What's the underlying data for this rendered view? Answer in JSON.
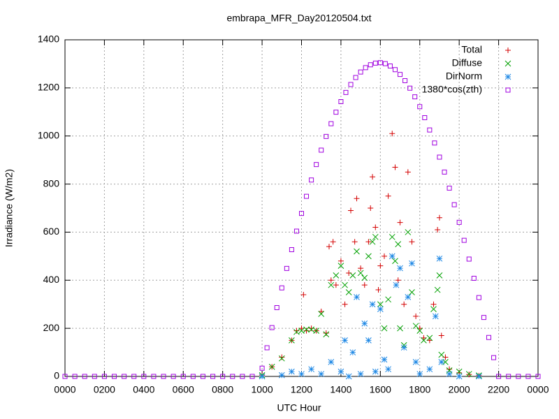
{
  "chart_data": {
    "type": "scatter",
    "title": "embrapa_MFR_Day20120504.txt",
    "xlabel": "UTC Hour",
    "ylabel": "Irradiance (W/m2)",
    "xlim": [
      0,
      24
    ],
    "xticks": [
      {
        "value": 0,
        "label": "0000"
      },
      {
        "value": 2,
        "label": "0200"
      },
      {
        "value": 4,
        "label": "0400"
      },
      {
        "value": 6,
        "label": "0600"
      },
      {
        "value": 8,
        "label": "0800"
      },
      {
        "value": 10,
        "label": "1000"
      },
      {
        "value": 12,
        "label": "1200"
      },
      {
        "value": 14,
        "label": "1400"
      },
      {
        "value": 16,
        "label": "1600"
      },
      {
        "value": 18,
        "label": "1800"
      },
      {
        "value": 20,
        "label": "2000"
      },
      {
        "value": 22,
        "label": "2200"
      },
      {
        "value": 24,
        "label": "0000"
      }
    ],
    "ylim": [
      0,
      1400
    ],
    "yticks": [
      0,
      200,
      400,
      600,
      800,
      1000,
      1200,
      1400
    ],
    "grid": true,
    "legend": "upper right",
    "series": [
      {
        "name": "Total",
        "color": "#d40000",
        "marker": "plus",
        "x": [
          10,
          10.5,
          11,
          11.5,
          11.75,
          12,
          12.1,
          12.25,
          12.5,
          12.75,
          13,
          13.25,
          13.4,
          13.5,
          13.6,
          13.75,
          14,
          14.2,
          14.4,
          14.5,
          14.7,
          14.8,
          15,
          15.2,
          15.4,
          15.5,
          15.6,
          15.75,
          15.9,
          16,
          16.2,
          16.4,
          16.6,
          16.75,
          16.9,
          17,
          17.2,
          17.4,
          17.6,
          17.8,
          18,
          18.2,
          18.5,
          18.7,
          18.9,
          19,
          19.1,
          19.3,
          19.5,
          20,
          20.5,
          21
        ],
        "values": [
          5,
          40,
          80,
          150,
          190,
          200,
          340,
          190,
          200,
          190,
          270,
          180,
          540,
          400,
          560,
          380,
          480,
          300,
          430,
          690,
          560,
          740,
          450,
          380,
          560,
          700,
          830,
          620,
          360,
          460,
          500,
          750,
          1010,
          870,
          400,
          640,
          300,
          850,
          560,
          250,
          200,
          160,
          150,
          300,
          610,
          660,
          170,
          80,
          30,
          15,
          8,
          3
        ]
      },
      {
        "name": "Diffuse",
        "color": "#00a000",
        "marker": "cross",
        "x": [
          10,
          10.5,
          11,
          11.5,
          11.75,
          12,
          12.25,
          12.5,
          12.75,
          13,
          13.25,
          13.5,
          13.75,
          14,
          14.2,
          14.4,
          14.6,
          14.8,
          15,
          15.2,
          15.4,
          15.6,
          15.75,
          16,
          16.2,
          16.4,
          16.6,
          16.75,
          16.9,
          17,
          17.2,
          17.4,
          17.6,
          17.8,
          18,
          18.2,
          18.5,
          18.7,
          18.9,
          19,
          19.1,
          19.3,
          19.5,
          20,
          20.5,
          21
        ],
        "values": [
          5,
          40,
          75,
          150,
          185,
          190,
          195,
          195,
          190,
          260,
          175,
          380,
          420,
          460,
          380,
          350,
          420,
          520,
          430,
          410,
          500,
          560,
          580,
          300,
          200,
          320,
          580,
          480,
          550,
          200,
          130,
          600,
          350,
          210,
          190,
          150,
          160,
          280,
          360,
          420,
          90,
          60,
          25,
          20,
          10,
          4
        ]
      },
      {
        "name": "DirNorm",
        "color": "#1e88e5",
        "marker": "star",
        "x": [
          10,
          11,
          11.5,
          12,
          12.5,
          13,
          13.5,
          14,
          14.2,
          14.4,
          14.6,
          14.8,
          15,
          15.2,
          15.4,
          15.6,
          15.75,
          16,
          16.2,
          16.4,
          16.6,
          16.8,
          17,
          17.2,
          17.4,
          17.6,
          17.8,
          18,
          18.5,
          18.8,
          19,
          19.1,
          19.5,
          20,
          21
        ],
        "values": [
          0,
          5,
          20,
          10,
          30,
          10,
          60,
          20,
          150,
          0,
          100,
          330,
          10,
          220,
          150,
          300,
          20,
          280,
          70,
          30,
          500,
          380,
          450,
          120,
          330,
          470,
          60,
          10,
          30,
          250,
          490,
          60,
          10,
          0,
          0
        ]
      },
      {
        "name": "1380*cos(zth)",
        "color": "#a000e0",
        "marker": "square",
        "x": [
          0,
          0.5,
          1,
          1.5,
          2,
          2.5,
          3,
          3.5,
          4,
          4.5,
          5,
          5.5,
          6,
          6.5,
          7,
          7.5,
          8,
          8.5,
          9,
          9.5,
          10,
          10.25,
          10.5,
          10.75,
          11,
          11.25,
          11.5,
          11.75,
          12,
          12.25,
          12.5,
          12.75,
          13,
          13.25,
          13.5,
          13.75,
          14,
          14.25,
          14.5,
          14.75,
          15,
          15.25,
          15.5,
          15.75,
          16,
          16.25,
          16.5,
          16.75,
          17,
          17.25,
          17.5,
          17.75,
          18,
          18.25,
          18.5,
          18.75,
          19,
          19.25,
          19.5,
          19.75,
          20,
          20.25,
          20.5,
          20.75,
          21,
          21.25,
          21.5,
          21.75,
          22,
          22.5,
          23,
          23.5,
          24
        ],
        "values": [
          0,
          0,
          0,
          0,
          0,
          0,
          0,
          0,
          0,
          0,
          0,
          0,
          0,
          0,
          0,
          0,
          0,
          0,
          0,
          0,
          34,
          119,
          203,
          286,
          368,
          449,
          527,
          604,
          678,
          749,
          817,
          881,
          941,
          998,
          1051,
          1099,
          1143,
          1181,
          1214,
          1243,
          1266,
          1284,
          1296,
          1303,
          1305,
          1301,
          1291,
          1276,
          1256,
          1230,
          1199,
          1163,
          1122,
          1076,
          1025,
          971,
          912,
          850,
          783,
          714,
          641,
          566,
          488,
          408,
          328,
          245,
          162,
          78,
          0,
          0,
          0,
          0,
          0
        ]
      }
    ]
  }
}
